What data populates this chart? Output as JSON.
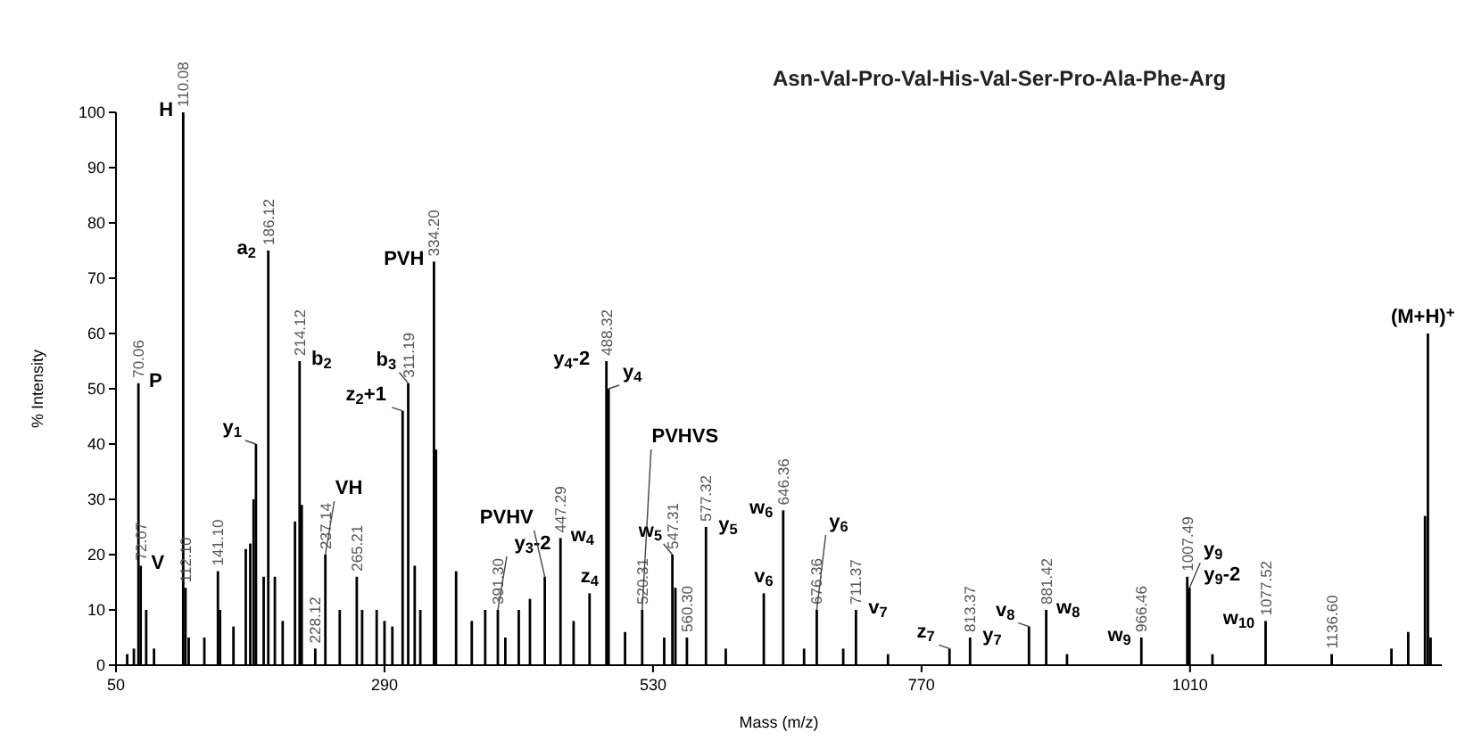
{
  "chart_data": {
    "type": "bar",
    "title": "Asn-Val-Pro-Val-His-Val-Ser-Pro-Ala-Phe-Arg",
    "xlabel": "Mass (m/z)",
    "ylabel": "% Intensity",
    "color": "#000000",
    "xlim": [
      50,
      1235
    ],
    "xticks": [
      50,
      290,
      530,
      770,
      1010
    ],
    "ylim": [
      0,
      100
    ],
    "yticks": [
      0,
      10,
      20,
      30,
      40,
      50,
      60,
      70,
      80,
      90,
      100
    ],
    "grid": false,
    "x": [
      60,
      66,
      70.06,
      72.07,
      77,
      84,
      110.08,
      112.1,
      115,
      129,
      141.1,
      143,
      155,
      166,
      170,
      173,
      175.12,
      182,
      186.12,
      192,
      199,
      210,
      214.12,
      216,
      228.12,
      237.14,
      250,
      265.21,
      270,
      283,
      290,
      297,
      306.19,
      311.19,
      317,
      322,
      334.2,
      336,
      354,
      368,
      380,
      391.3,
      398,
      410,
      420,
      433.26,
      447.29,
      459,
      473.27,
      488.32,
      490.28,
      505,
      520.31,
      540,
      547.31,
      550,
      560.3,
      577.32,
      595,
      629,
      646.36,
      665,
      676.36,
      700,
      711.37,
      740,
      795,
      813.37,
      866,
      881.42,
      900,
      966.46,
      1007.49,
      1009.5,
      1030,
      1077.52,
      1136.6,
      1190,
      1205,
      1220,
      1222.6,
      1225
    ],
    "values": [
      2,
      3,
      51,
      18,
      10,
      3,
      100,
      14,
      5,
      5,
      17,
      10,
      7,
      21,
      22,
      30,
      40,
      16,
      75,
      16,
      8,
      26,
      55,
      29,
      3,
      20,
      10,
      16,
      10,
      10,
      8,
      7,
      46,
      51,
      18,
      10,
      73,
      39,
      17,
      8,
      10,
      10,
      5,
      10,
      12,
      16,
      23,
      8,
      13,
      55,
      50,
      6,
      10,
      5,
      20,
      14,
      5,
      25,
      3,
      13,
      28,
      3,
      10,
      3,
      10,
      2,
      3,
      5,
      7,
      10,
      2,
      5,
      16,
      14,
      2,
      8,
      2,
      3,
      6,
      27,
      60,
      5
    ],
    "annotations": [
      {
        "text": "70.06",
        "x": 70.06,
        "y": 51
      },
      {
        "text": "72.07",
        "x": 72.07,
        "y": 18
      },
      {
        "text": "110.08",
        "x": 110.08,
        "y": 100
      },
      {
        "text": "112.10",
        "x": 112.1,
        "y": 14
      },
      {
        "text": "141.10",
        "x": 141.1,
        "y": 17
      },
      {
        "text": "186.12",
        "x": 186.12,
        "y": 75
      },
      {
        "text": "214.12",
        "x": 214.12,
        "y": 55
      },
      {
        "text": "228.12",
        "x": 228.12,
        "y": 3
      },
      {
        "text": "237.14",
        "x": 237.14,
        "y": 20
      },
      {
        "text": "265.21",
        "x": 265.21,
        "y": 16
      },
      {
        "text": "311.19",
        "x": 311.19,
        "y": 51
      },
      {
        "text": "334.20",
        "x": 334.2,
        "y": 73
      },
      {
        "text": "391.30",
        "x": 391.3,
        "y": 10
      },
      {
        "text": "447.29",
        "x": 447.29,
        "y": 23
      },
      {
        "text": "488.32",
        "x": 488.32,
        "y": 55
      },
      {
        "text": "520.31",
        "x": 520.31,
        "y": 10
      },
      {
        "text": "547.31",
        "x": 547.31,
        "y": 20
      },
      {
        "text": "560.30",
        "x": 560.3,
        "y": 5
      },
      {
        "text": "577.32",
        "x": 577.32,
        "y": 25
      },
      {
        "text": "646.36",
        "x": 646.36,
        "y": 28
      },
      {
        "text": "676.36",
        "x": 676.36,
        "y": 10
      },
      {
        "text": "711.37",
        "x": 711.37,
        "y": 10
      },
      {
        "text": "813.37",
        "x": 813.37,
        "y": 5
      },
      {
        "text": "881.42",
        "x": 881.42,
        "y": 10
      },
      {
        "text": "966.46",
        "x": 966.46,
        "y": 5
      },
      {
        "text": "1007.49",
        "x": 1007.49,
        "y": 16
      },
      {
        "text": "1077.52",
        "x": 1077.52,
        "y": 8
      },
      {
        "text": "1136.60",
        "x": 1136.6,
        "y": 2
      },
      {
        "text": "P",
        "x": 70.06,
        "y": 51
      },
      {
        "text": "V",
        "x": 72.07,
        "y": 18
      },
      {
        "text": "H",
        "x": 110.08,
        "y": 100
      },
      {
        "text": "y$_{1}$",
        "x": 175.12,
        "y": 40
      },
      {
        "text": "a$_{2}$",
        "x": 186.12,
        "y": 75
      },
      {
        "text": "b$_{2}$",
        "x": 214.12,
        "y": 55
      },
      {
        "text": "VH",
        "x": 237.14,
        "y": 20
      },
      {
        "text": "z$_{2}$+1",
        "x": 306.19,
        "y": 46
      },
      {
        "text": "b$_{3}$",
        "x": 311.19,
        "y": 51
      },
      {
        "text": "PVH",
        "x": 334.2,
        "y": 73
      },
      {
        "text": "y$_{3}$-2",
        "x": 391.3,
        "y": 10
      },
      {
        "text": "PVHV",
        "x": 433.26,
        "y": 16
      },
      {
        "text": "w$_{4}$",
        "x": 447.29,
        "y": 23
      },
      {
        "text": "z$_{4}$",
        "x": 473.27,
        "y": 13
      },
      {
        "text": "y$_{4}$-2",
        "x": 488.32,
        "y": 55
      },
      {
        "text": "y$_{4}$",
        "x": 490.28,
        "y": 50
      },
      {
        "text": "PVHVS",
        "x": 520.31,
        "y": 10
      },
      {
        "text": "w$_{5}$",
        "x": 547.31,
        "y": 20
      },
      {
        "text": "y$_{5}$",
        "x": 577.32,
        "y": 25
      },
      {
        "text": "v$_{6}$",
        "x": 629,
        "y": 13
      },
      {
        "text": "w$_{6}$",
        "x": 646.36,
        "y": 28
      },
      {
        "text": "y$_{6}$",
        "x": 676.36,
        "y": 10
      },
      {
        "text": "v$_{7}$",
        "x": 711.37,
        "y": 10
      },
      {
        "text": "z$_{7}$",
        "x": 795,
        "y": 3
      },
      {
        "text": "y$_{7}$",
        "x": 813.37,
        "y": 5
      },
      {
        "text": "v$_{8}$",
        "x": 866,
        "y": 7
      },
      {
        "text": "w$_{8}$",
        "x": 881.42,
        "y": 10
      },
      {
        "text": "w$_{9}$",
        "x": 966.46,
        "y": 5
      },
      {
        "text": "y$_{9}$-2",
        "x": 1007.49,
        "y": 16
      },
      {
        "text": "y$_{9}$",
        "x": 1009.5,
        "y": 14
      },
      {
        "text": "w$_{10}$",
        "x": 1077.52,
        "y": 8
      },
      {
        "text": "(M+H)$^{+}$",
        "x": 1222.6,
        "y": 60
      }
    ]
  }
}
